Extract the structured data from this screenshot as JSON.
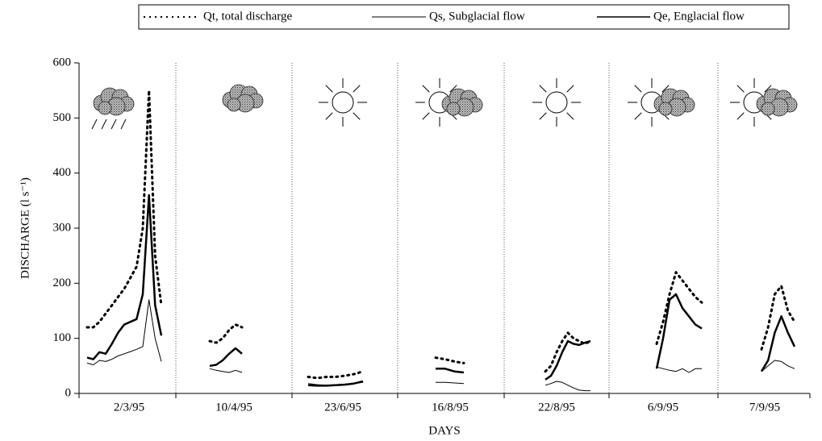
{
  "chart_data": {
    "type": "line",
    "y_label": "DISCHARGE (l s⁻¹)",
    "x_label": "DAYS",
    "categories": [
      "2/3/95",
      "10/4/95",
      "23/6/95",
      "16/8/95",
      "22/8/95",
      "6/9/95",
      "7/9/95"
    ],
    "ylim": [
      0,
      600
    ],
    "yticks": [
      0,
      100,
      200,
      300,
      400,
      500,
      600
    ],
    "grid": false,
    "series": [
      {
        "name": "Qt, total discharge",
        "color": "#000000",
        "line_style": "dotted",
        "values": [
          [
            120,
            120,
            130,
            145,
            160,
            175,
            190,
            210,
            230,
            300,
            550,
            250,
            160
          ],
          [
            95,
            92,
            100,
            115,
            125,
            120
          ],
          [
            30,
            28,
            30,
            30,
            32,
            35,
            40
          ],
          [
            65,
            62,
            58,
            55
          ],
          [
            40,
            50,
            75,
            95,
            110,
            100,
            95,
            90,
            95
          ],
          [
            90,
            130,
            180,
            220,
            205,
            190,
            175,
            165
          ],
          [
            80,
            120,
            180,
            195,
            150,
            130
          ]
        ]
      },
      {
        "name": "Qs, Subglacial flow",
        "color": "#000000",
        "line_style": "thin",
        "values": [
          [
            55,
            52,
            60,
            58,
            62,
            68,
            72,
            76,
            80,
            85,
            170,
            100,
            58
          ],
          [
            45,
            42,
            40,
            38,
            42,
            38
          ],
          [
            18,
            16,
            15,
            16,
            17,
            18,
            20
          ],
          [
            20,
            20,
            19,
            18
          ],
          [
            15,
            18,
            22,
            20,
            15,
            10,
            6,
            5,
            5
          ],
          [
            48,
            45,
            42,
            40,
            45,
            38,
            45,
            45
          ],
          [
            40,
            50,
            60,
            58,
            50,
            45
          ]
        ]
      },
      {
        "name": "Qe, Englacial flow",
        "color": "#000000",
        "line_style": "thick",
        "values": [
          [
            65,
            62,
            75,
            72,
            90,
            110,
            125,
            130,
            135,
            180,
            360,
            160,
            105
          ],
          [
            50,
            52,
            60,
            72,
            82,
            72
          ],
          [
            15,
            14,
            14,
            15,
            16,
            18,
            22
          ],
          [
            45,
            45,
            40,
            38
          ],
          [
            25,
            32,
            50,
            75,
            95,
            90,
            88,
            92,
            95
          ],
          [
            45,
            100,
            170,
            180,
            155,
            140,
            125,
            118
          ],
          [
            40,
            60,
            110,
            140,
            110,
            85
          ]
        ]
      }
    ]
  }
}
